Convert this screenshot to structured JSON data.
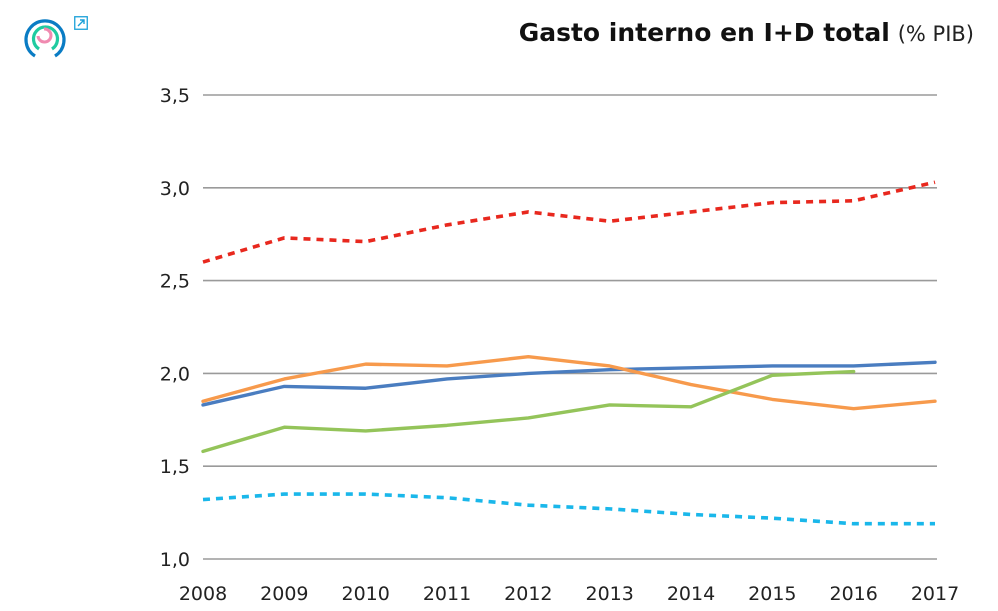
{
  "header": {
    "title": "Gasto interno en I+D total",
    "unit": "(% PIB)",
    "logo_icon": "circular-rings-logo-icon",
    "external_link_icon": "external-link-arrow-icon"
  },
  "chart_data": {
    "type": "line",
    "title": "Gasto interno en I+D total (% PIB)",
    "xlabel": "",
    "ylabel": "% PIB",
    "x": [
      "2008",
      "2009",
      "2010",
      "2011",
      "2012",
      "2013",
      "2014",
      "2015",
      "2016",
      "2017"
    ],
    "yticks": [
      "1,0",
      "1,5",
      "2,0",
      "2,5",
      "3,0",
      "3,5"
    ],
    "ylim": [
      1.0,
      3.5
    ],
    "grid": "horizontal",
    "legend": "none",
    "series": [
      {
        "name": "Serie roja (discontinua)",
        "color": "#e8281e",
        "dash": true,
        "values": [
          2.6,
          2.73,
          2.71,
          2.8,
          2.87,
          2.82,
          2.87,
          2.92,
          2.93,
          3.03
        ]
      },
      {
        "name": "Serie azul",
        "color": "#4a7dc0",
        "dash": false,
        "values": [
          1.83,
          1.93,
          1.92,
          1.97,
          2.0,
          2.02,
          2.03,
          2.04,
          2.04,
          2.06
        ]
      },
      {
        "name": "Serie naranja",
        "color": "#f79a4c",
        "dash": false,
        "values": [
          1.85,
          1.97,
          2.05,
          2.04,
          2.09,
          2.04,
          1.94,
          1.86,
          1.81,
          1.85
        ]
      },
      {
        "name": "Serie verde",
        "color": "#94c45a",
        "dash": false,
        "values": [
          1.58,
          1.71,
          1.69,
          1.72,
          1.76,
          1.83,
          1.82,
          1.99,
          2.01,
          null
        ]
      },
      {
        "name": "Serie celeste (discontinua)",
        "color": "#1ab7ea",
        "dash": true,
        "values": [
          1.32,
          1.35,
          1.35,
          1.33,
          1.29,
          1.27,
          1.24,
          1.22,
          1.19,
          1.19
        ]
      }
    ]
  }
}
